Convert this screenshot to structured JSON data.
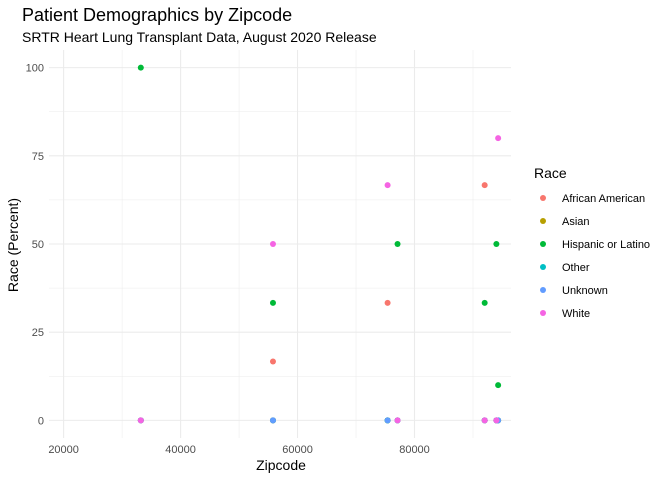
{
  "chart_data": {
    "type": "scatter",
    "title": "Patient Demographics by Zipcode",
    "subtitle": "SRTR Heart Lung Transplant Data, August 2020 Release",
    "xlabel": "Zipcode",
    "ylabel": "Race (Percent)",
    "xlim": [
      17500,
      96500
    ],
    "ylim": [
      -5,
      105
    ],
    "x_ticks": [
      20000,
      40000,
      60000,
      80000
    ],
    "x_tick_labels": [
      "20000",
      "40000",
      "60000",
      "80000"
    ],
    "y_ticks": [
      0,
      25,
      50,
      75,
      100
    ],
    "y_tick_labels": [
      "0",
      "25",
      "50",
      "75",
      "100"
    ],
    "grid": true,
    "legend": {
      "title": "Race",
      "position": "right",
      "entries": [
        {
          "name": "African American",
          "color": "#F8766D"
        },
        {
          "name": "Asian",
          "color": "#B79F00"
        },
        {
          "name": "Hispanic or Latino",
          "color": "#00BA38"
        },
        {
          "name": "Other",
          "color": "#00BFC4"
        },
        {
          "name": "Unknown",
          "color": "#619CFF"
        },
        {
          "name": "White",
          "color": "#F564E3"
        }
      ]
    },
    "series": [
      {
        "name": "African American",
        "points": [
          [
            33200,
            0
          ],
          [
            55800,
            16.7
          ],
          [
            55800,
            0
          ],
          [
            75400,
            33.3
          ],
          [
            75400,
            0
          ],
          [
            77100,
            0
          ],
          [
            92000,
            66.7
          ],
          [
            92000,
            0
          ],
          [
            94000,
            0
          ],
          [
            94300,
            0
          ]
        ]
      },
      {
        "name": "Asian",
        "points": [
          [
            33200,
            0
          ],
          [
            55800,
            0
          ],
          [
            75400,
            0
          ],
          [
            77100,
            0
          ],
          [
            92000,
            0
          ],
          [
            94000,
            0
          ],
          [
            94300,
            0
          ]
        ]
      },
      {
        "name": "Hispanic or Latino",
        "points": [
          [
            33200,
            100
          ],
          [
            55800,
            33.3
          ],
          [
            75400,
            0
          ],
          [
            77100,
            50
          ],
          [
            92000,
            33.3
          ],
          [
            94000,
            50
          ],
          [
            94300,
            10
          ]
        ]
      },
      {
        "name": "Other",
        "points": [
          [
            33200,
            0
          ],
          [
            55800,
            0
          ],
          [
            75400,
            0
          ],
          [
            77100,
            0
          ],
          [
            92000,
            0
          ],
          [
            94000,
            0
          ],
          [
            94300,
            0
          ]
        ]
      },
      {
        "name": "Unknown",
        "points": [
          [
            33200,
            0
          ],
          [
            55800,
            0
          ],
          [
            75400,
            0
          ],
          [
            77100,
            0
          ],
          [
            92000,
            0
          ],
          [
            94000,
            0
          ],
          [
            94300,
            0
          ]
        ]
      },
      {
        "name": "White",
        "points": [
          [
            33200,
            0
          ],
          [
            55800,
            50
          ],
          [
            75400,
            66.7
          ],
          [
            77100,
            0
          ],
          [
            92000,
            0
          ],
          [
            94000,
            0
          ],
          [
            94300,
            80
          ]
        ]
      }
    ]
  }
}
